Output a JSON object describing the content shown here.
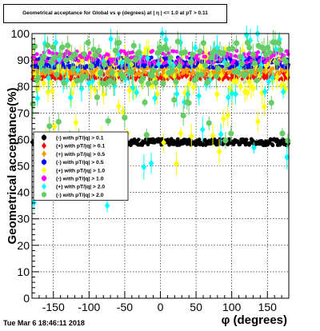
{
  "chart_data": {
    "type": "scatter",
    "title": "Geometrical acceptance for Global vs φ (degrees) at | η | <= 1.0 at pT > 0.11",
    "xlabel": "φ (degrees)",
    "ylabel": "Geometrical acceptance(%)",
    "xlim": [
      -180,
      180
    ],
    "ylim": [
      0,
      100
    ],
    "xticks": [
      -150,
      -100,
      -50,
      0,
      50,
      100,
      150
    ],
    "yticks": [
      0,
      10,
      20,
      30,
      40,
      50,
      60,
      70,
      80,
      90,
      100
    ],
    "grid": true,
    "legend_position": "middle-left",
    "series": [
      {
        "name": "(-) with pT/|q| > 0.1",
        "color": "#000000",
        "marker": "circle",
        "pattern": "band",
        "level": 59,
        "spread": 1.2,
        "npoints": 360
      },
      {
        "name": "(+) with pT/|q| > 0.1",
        "color": "#ff0000",
        "marker": "diamond",
        "pattern": "band",
        "level": 84,
        "spread": 1.4,
        "npoints": 360
      },
      {
        "name": "(+) with pT/|q| > 0.5",
        "color": "#ff9900",
        "marker": "diamond",
        "pattern": "band",
        "level": 86,
        "spread": 1.6,
        "npoints": 360
      },
      {
        "name": "(-) with pT/|q| > 0.5",
        "color": "#0000ff",
        "marker": "circle",
        "pattern": "band",
        "level": 89,
        "spread": 2.0,
        "npoints": 360
      },
      {
        "name": "(+) with pT/|q| > 1.0",
        "color": "#ffff00",
        "marker": "diamond",
        "pattern": "sparse",
        "level": 86,
        "spread": 9,
        "npoints": 120
      },
      {
        "name": "(-) with pT/|q| > 1.0",
        "color": "#ff00ff",
        "marker": "circle",
        "pattern": "band",
        "level": 91,
        "spread": 2.5,
        "npoints": 180
      },
      {
        "name": "(+) with pT/|q| > 2.0",
        "color": "#00ffff",
        "marker": "diamond",
        "pattern": "sparse",
        "level": 88,
        "spread": 14,
        "npoints": 70
      },
      {
        "name": "(-) with pT/|q| > 2.0",
        "color": "#66cc66",
        "marker": "circle",
        "pattern": "sparse",
        "level": 89,
        "spread": 8,
        "npoints": 140
      }
    ],
    "annotations": [
      {
        "text": "Tue Mar  6 18:46:11 2018"
      }
    ]
  }
}
